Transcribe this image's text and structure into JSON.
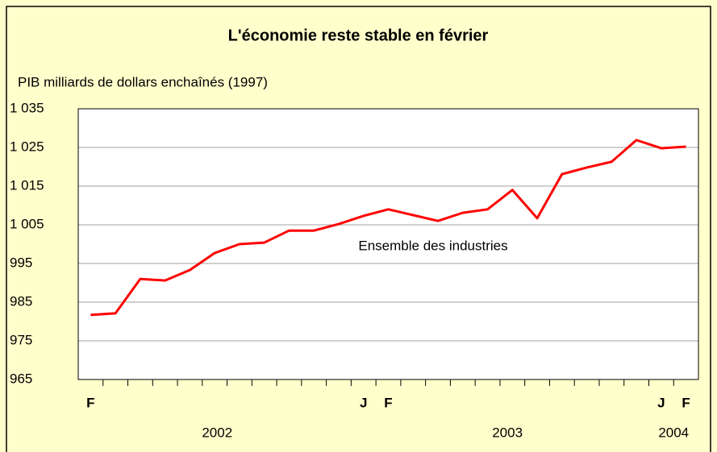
{
  "chart_data": {
    "type": "line",
    "title": "L'économie reste stable en février",
    "y_label": "PIB milliards de dollars enchaînés (1997)",
    "categories": [
      "F",
      null,
      null,
      null,
      null,
      null,
      null,
      null,
      null,
      null,
      null,
      "J",
      "F",
      null,
      null,
      null,
      null,
      null,
      null,
      null,
      null,
      null,
      null,
      "J",
      "F"
    ],
    "years": [
      "2002",
      "2003",
      "2004"
    ],
    "series": [
      {
        "name": "Ensemble des industries",
        "color": "#ff0000",
        "values": [
          981.7,
          982.1,
          991.0,
          990.6,
          993.3,
          997.7,
          1000.0,
          1000.4,
          1003.5,
          1003.5,
          1005.2,
          1007.3,
          1009.0,
          1007.5,
          1006.0,
          1008.1,
          1009.0,
          1014.0,
          1006.7,
          1018.1,
          1019.8,
          1021.3,
          1026.9,
          1024.8,
          1025.2
        ]
      }
    ],
    "ylim": [
      965,
      1035
    ],
    "yticks": [
      965,
      975,
      985,
      995,
      {
        "value": 1005,
        "label": "1 005"
      },
      {
        "value": 1015,
        "label": "1 015"
      },
      {
        "value": 1025,
        "label": "1 025"
      },
      {
        "value": 1035,
        "label": "1 035"
      }
    ],
    "grid": true
  }
}
